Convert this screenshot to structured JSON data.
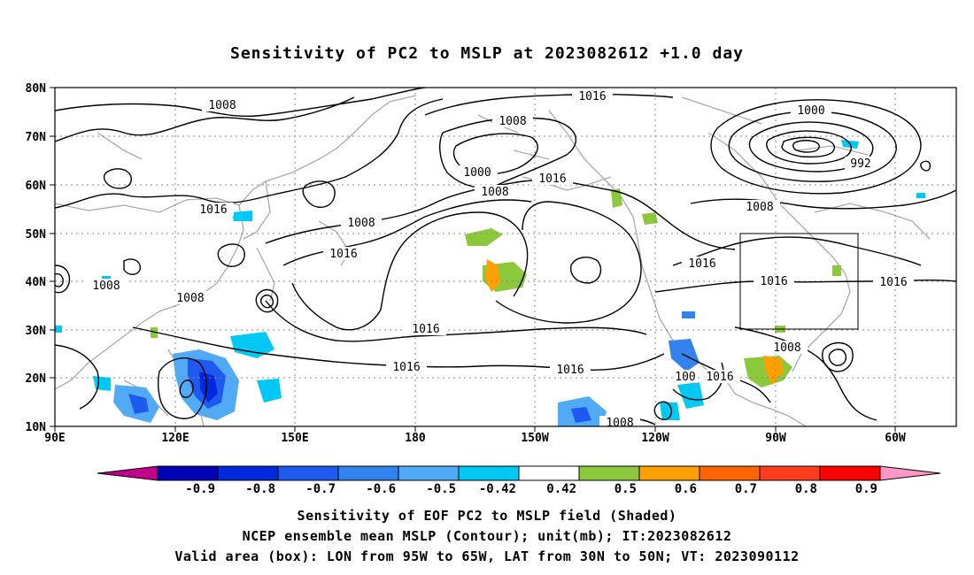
{
  "title": "Sensitivity of PC2 to MSLP at 2023082612 +1.0 day",
  "lat_ticks": [
    "80N",
    "70N",
    "60N",
    "50N",
    "40N",
    "30N",
    "20N",
    "10N"
  ],
  "lon_ticks": [
    "90E",
    "120E",
    "150E",
    "180",
    "150W",
    "120W",
    "90W",
    "60W"
  ],
  "contour_labels": [
    "1008",
    "1016",
    "1000",
    "992",
    "100"
  ],
  "colorbar": {
    "labels": [
      "-0.9",
      "-0.8",
      "-0.7",
      "-0.6",
      "-0.5",
      "-0.42",
      "0.42",
      "0.5",
      "0.6",
      "0.7",
      "0.8",
      "0.9"
    ],
    "colors": [
      "#c0008c",
      "#0000b4",
      "#0028dc",
      "#1e5af0",
      "#3282f0",
      "#50aaf5",
      "#00c8f5",
      "#ffffff",
      "#8cc83c",
      "#ffa000",
      "#ff6400",
      "#ff3c1e",
      "#ff0000",
      "#ff96c8"
    ]
  },
  "captions": [
    "Sensitivity of EOF PC2 to MSLP field (Shaded)",
    "NCEP ensemble mean MSLP (Contour); unit(mb); IT:2023082612",
    "Valid area (box): LON from 95W to 65W, LAT from 30N to 50N; VT: 2023090112"
  ]
}
